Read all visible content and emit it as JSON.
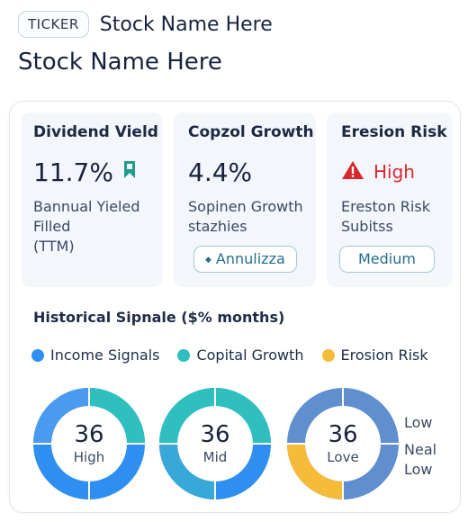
{
  "header": {
    "ticker": "TICKER",
    "stock_name": "Stock Name Here"
  },
  "page_title": "Stock Name Here",
  "metrics": [
    {
      "title": "Dividend Vield",
      "value": "11.7%",
      "icon": "bookmark-icon",
      "description": "Bannual Yieled\nFilled\n(TTM)"
    },
    {
      "title": "Copzol Growth",
      "value": "4.4%",
      "description": "Sopinen Growth\nstazhies",
      "badge": "Annulizza"
    },
    {
      "title": "Eresion Risk",
      "value": "High",
      "icon": "warning-icon",
      "description": "Ereston Risk\nSubitss",
      "badge": "Medium"
    }
  ],
  "signals": {
    "heading": "Historical Sipnale ($% months)",
    "legend": [
      {
        "label": "Income Signals",
        "color": "#2f8ff0"
      },
      {
        "label": "Copital Growth",
        "color": "#2ebfbe"
      },
      {
        "label": "Erosion Risk",
        "color": "#f7bb3a"
      }
    ],
    "donuts": [
      {
        "value": "36",
        "label": "High"
      },
      {
        "value": "36",
        "label": "Mid"
      },
      {
        "value": "36",
        "label": "Love"
      }
    ],
    "side_labels": [
      "Low",
      "Neal\nLow"
    ]
  },
  "colors": {
    "accent_blue": "#2f8ff0",
    "accent_teal": "#2ebfbe",
    "accent_yellow": "#f7bb3a",
    "risk_red": "#d8262c",
    "muted_blue": "#5f8fcf"
  }
}
